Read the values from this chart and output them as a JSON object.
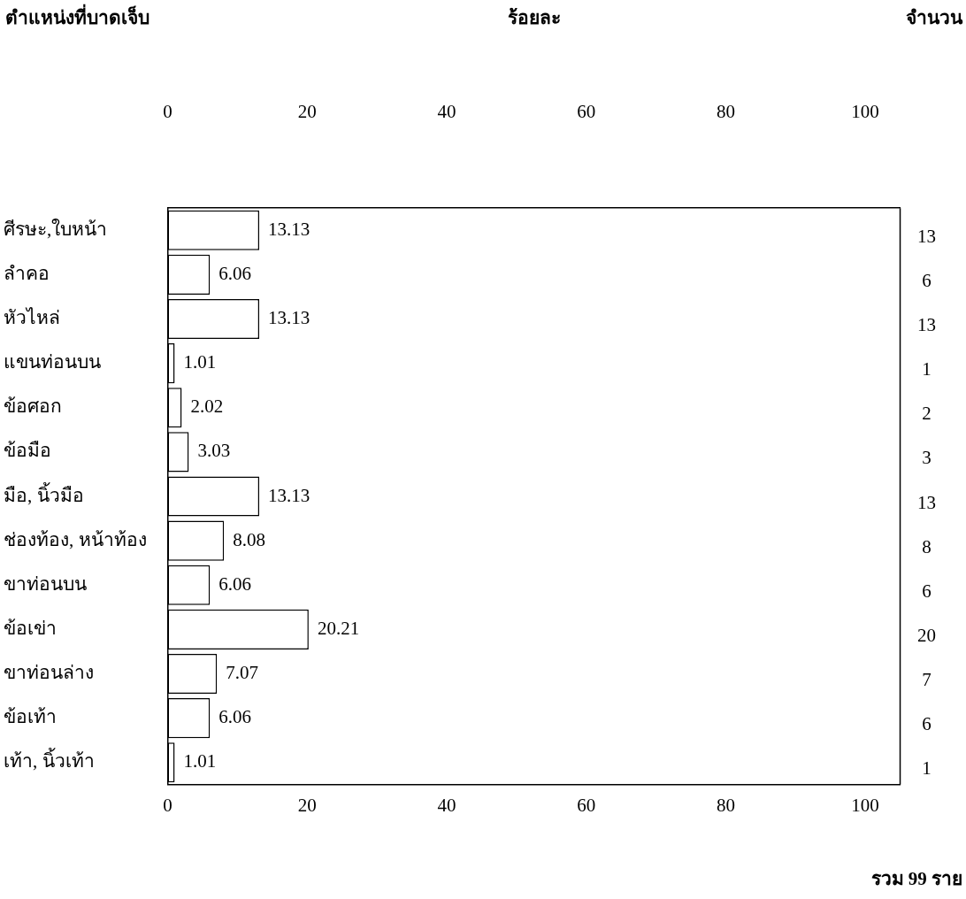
{
  "chart_data": {
    "type": "bar",
    "orientation": "horizontal",
    "ylabel": "ตำแหน่งที่บาดเจ็บ",
    "x2label": "ร้อยละ",
    "y2label": "จำนวน",
    "categories": [
      "ศีรษะ,ใบหน้า",
      "ลำคอ",
      "หัวไหล่",
      "แขนท่อนบน",
      "ข้อศอก",
      "ข้อมือ",
      "มือ, นิ้วมือ",
      "ช่องท้อง, หน้าท้อง",
      "ขาท่อนบน",
      "ข้อเข่า",
      "ขาท่อนล่าง",
      "ข้อเท้า",
      "เท้า, นิ้วเท้า"
    ],
    "values": [
      13.13,
      6.06,
      13.13,
      1.01,
      2.02,
      3.03,
      13.13,
      8.08,
      6.06,
      20.21,
      7.07,
      6.06,
      1.01
    ],
    "color": "#ffffff",
    "data_labels": true,
    "xlim": [
      0,
      105
    ],
    "xticks": [
      0,
      20,
      40,
      60,
      80,
      100
    ],
    "x2lim": [
      0,
      105
    ],
    "x2ticks": [
      0,
      20,
      40,
      60,
      80,
      100
    ],
    "grid": false,
    "legend": false,
    "annotations": [
      "13",
      "6",
      "13",
      "1",
      "2",
      "3",
      "13",
      "8",
      "6",
      "20",
      "7",
      "6",
      "1",
      "รวม 99 ราย"
    ]
  }
}
